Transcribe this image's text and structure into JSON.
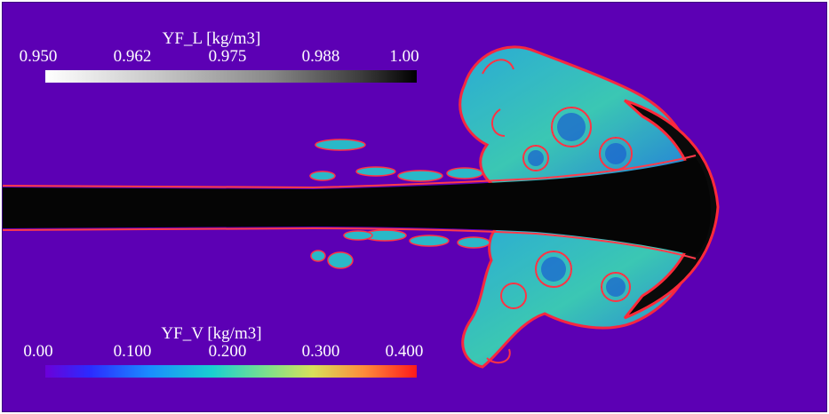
{
  "colors": {
    "background_vapor_zero": "#5c00b4",
    "liquid_core": "#000000",
    "interface_high": "#ff2a3a",
    "mixing_mid": "#22c8c8"
  },
  "colorbar_liquid": {
    "title": "YF_L [kg/m3]",
    "ticks": [
      "0.950",
      "0.962",
      "0.975",
      "0.988",
      "1.00"
    ],
    "colormap": "grayscale-white-to-black"
  },
  "colorbar_vapor": {
    "title": "YF_V [kg/m3]",
    "ticks": [
      "0.00",
      "0.100",
      "0.200",
      "0.300",
      "0.400"
    ],
    "colormap": "rainbow-purple-to-red"
  }
}
